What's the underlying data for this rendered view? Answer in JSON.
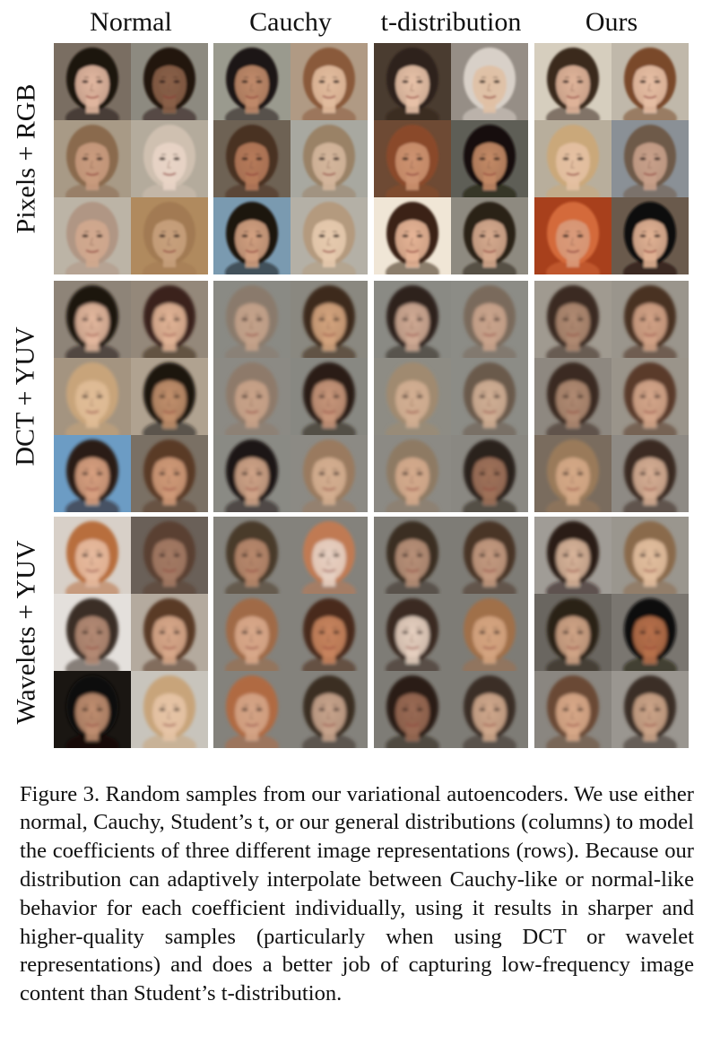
{
  "columns": [
    "Normal",
    "Cauchy",
    "t-distribution",
    "Ours"
  ],
  "rows": [
    "Pixels + RGB",
    "DCT + YUV",
    "Wavelets + YUV"
  ],
  "faces": [
    [
      [
        {
          "bg": "#7a6e62",
          "skin": "#e2b7a0",
          "hair": "#1c1410"
        },
        {
          "bg": "#8d8a80",
          "skin": "#8a6048",
          "hair": "#241810"
        },
        {
          "bg": "#a89a86",
          "skin": "#c99b7e",
          "hair": "#8a6a4e"
        },
        {
          "bg": "#b4ab9c",
          "skin": "#e8d4c6",
          "hair": "#cfc0b0"
        },
        {
          "bg": "#bcb4a6",
          "skin": "#d1a88e",
          "hair": "#b09684"
        },
        {
          "bg": "#b08a5e",
          "skin": "#c7a07c",
          "hair": "#a27a52"
        }
      ],
      [
        {
          "bg": "#9a9a8e",
          "skin": "#c08a6a",
          "hair": "#1e1612"
        },
        {
          "bg": "#b09a84",
          "skin": "#e2bc9e",
          "hair": "#8a5a3a"
        },
        {
          "bg": "#6e6254",
          "skin": "#b67a5a",
          "hair": "#4a3020"
        },
        {
          "bg": "#a8a8a0",
          "skin": "#d4b69c",
          "hair": "#9a8266"
        },
        {
          "bg": "#7a9ab0",
          "skin": "#d2a080",
          "hair": "#1a1210"
        },
        {
          "bg": "#b4b0a6",
          "skin": "#e6caae",
          "hair": "#b49a7e"
        }
      ],
      [
        {
          "bg": "#4a3c30",
          "skin": "#e8c2a8",
          "hair": "#2e221a"
        },
        {
          "bg": "#968e86",
          "skin": "#e0c0a4",
          "hair": "#d8d0c8"
        },
        {
          "bg": "#6e4a34",
          "skin": "#cc9270",
          "hair": "#8a4a2a"
        },
        {
          "bg": "#5e5e56",
          "skin": "#c48a66",
          "hair": "#140e0a"
        },
        {
          "bg": "#f0e6d6",
          "skin": "#e6b496",
          "hair": "#3a2416"
        },
        {
          "bg": "#8e8a80",
          "skin": "#d6aa8e",
          "hair": "#2c2018"
        }
      ],
      [
        {
          "bg": "#d6cebe",
          "skin": "#e0b49a",
          "hair": "#3a2a1e"
        },
        {
          "bg": "#c0b8aa",
          "skin": "#e6bea4",
          "hair": "#7a4a2c"
        },
        {
          "bg": "#b8ae9c",
          "skin": "#e4c0a2",
          "hair": "#caa87a"
        },
        {
          "bg": "#8a9096",
          "skin": "#c8a08a",
          "hair": "#6e5a48"
        },
        {
          "bg": "#a8401c",
          "skin": "#d89a7a",
          "hair": "#d46a3a"
        },
        {
          "bg": "#6a5a4c",
          "skin": "#e2b294",
          "hair": "#0e0a08"
        }
      ]
    ],
    [
      [
        {
          "bg": "#8e8478",
          "skin": "#e4b89e",
          "hair": "#1c1410"
        },
        {
          "bg": "#94887a",
          "skin": "#e2b496",
          "hair": "#3a241a"
        },
        {
          "bg": "#a49480",
          "skin": "#e0bc96",
          "hair": "#c8a47a"
        },
        {
          "bg": "#b0a290",
          "skin": "#c2906c",
          "hair": "#1a1210"
        },
        {
          "bg": "#6c9cc4",
          "skin": "#d8a080",
          "hair": "#2a1a12"
        },
        {
          "bg": "#7a7064",
          "skin": "#d09a78",
          "hair": "#5a3a26"
        }
      ],
      [
        {
          "bg": "#8a8a84",
          "skin": "#c4a28a",
          "hair": "#8a7a6c"
        },
        {
          "bg": "#8a8880",
          "skin": "#d4a47e",
          "hair": "#3e2a1a"
        },
        {
          "bg": "#8c8a84",
          "skin": "#c8a288",
          "hair": "#8e7a6a"
        },
        {
          "bg": "#888882",
          "skin": "#c8967a",
          "hair": "#2a1e16"
        },
        {
          "bg": "#8a8a84",
          "skin": "#d0a488",
          "hair": "#1e1612"
        },
        {
          "bg": "#8c8a84",
          "skin": "#d4ae90",
          "hair": "#9a7a5e"
        }
      ],
      [
        {
          "bg": "#8a8a84",
          "skin": "#d0aa94",
          "hair": "#2e241e"
        },
        {
          "bg": "#8c8c86",
          "skin": "#caa48c",
          "hair": "#7a6a5c"
        },
        {
          "bg": "#8e8c84",
          "skin": "#d2ae92",
          "hair": "#a08a70"
        },
        {
          "bg": "#8c8c86",
          "skin": "#d0ae94",
          "hair": "#6a5a4c"
        },
        {
          "bg": "#8c8a84",
          "skin": "#d4aa8c",
          "hair": "#8e7a64"
        },
        {
          "bg": "#8a8882",
          "skin": "#a0725a",
          "hair": "#2a201a"
        }
      ],
      [
        {
          "bg": "#a09a90",
          "skin": "#b08a72",
          "hair": "#3a2a20"
        },
        {
          "bg": "#9a958c",
          "skin": "#d2a286",
          "hair": "#4a3222"
        },
        {
          "bg": "#8e8880",
          "skin": "#b08a72",
          "hair": "#3a2a20"
        },
        {
          "bg": "#9a948a",
          "skin": "#d4a68a",
          "hair": "#5a3a2a"
        },
        {
          "bg": "#7a6c5e",
          "skin": "#d4a886",
          "hair": "#9a7a5a"
        },
        {
          "bg": "#8e8a84",
          "skin": "#d6ae94",
          "hair": "#3a2a20"
        }
      ]
    ],
    [
      [
        {
          "bg": "#d8d0c8",
          "skin": "#e6ba9e",
          "hair": "#b86e3e"
        },
        {
          "bg": "#6a6058",
          "skin": "#a47a64",
          "hair": "#5a4032"
        },
        {
          "bg": "#e4e0dc",
          "skin": "#b48a74",
          "hair": "#3a2e26"
        },
        {
          "bg": "#b4aa9e",
          "skin": "#d8a88a",
          "hair": "#5a3a26"
        },
        {
          "bg": "#1a1612",
          "skin": "#c08e70",
          "hair": "#0e0a08"
        },
        {
          "bg": "#c8c4bc",
          "skin": "#e6c4a6",
          "hair": "#c8a47a"
        }
      ],
      [
        {
          "bg": "#84827c",
          "skin": "#b8886c",
          "hair": "#4a3a2c"
        },
        {
          "bg": "#84827c",
          "skin": "#e6d0c2",
          "hair": "#c07a52"
        },
        {
          "bg": "#84827c",
          "skin": "#d8a88a",
          "hair": "#a06a46"
        },
        {
          "bg": "#84827c",
          "skin": "#c8845e",
          "hair": "#4a2a1a"
        },
        {
          "bg": "#84827c",
          "skin": "#d4a486",
          "hair": "#b06a42"
        },
        {
          "bg": "#84827c",
          "skin": "#c8a48c",
          "hair": "#3a2e24"
        }
      ],
      [
        {
          "bg": "#7e7c76",
          "skin": "#b89078",
          "hair": "#3a2e24"
        },
        {
          "bg": "#7e7c76",
          "skin": "#c49a80",
          "hair": "#4a3628"
        },
        {
          "bg": "#7e7c76",
          "skin": "#e6d0c0",
          "hair": "#3a2a20"
        },
        {
          "bg": "#7e7c76",
          "skin": "#d4a480",
          "hair": "#a0704a"
        },
        {
          "bg": "#7e7c76",
          "skin": "#9a6a54",
          "hair": "#2a1e16"
        },
        {
          "bg": "#7e7c76",
          "skin": "#d0a88c",
          "hair": "#3a2e26"
        }
      ],
      [
        {
          "bg": "#a09c96",
          "skin": "#d8b49a",
          "hair": "#2a1a12"
        },
        {
          "bg": "#9a968e",
          "skin": "#e2be9e",
          "hair": "#8a6a4c"
        },
        {
          "bg": "#6a6660",
          "skin": "#d0a486",
          "hair": "#2a2018"
        },
        {
          "bg": "#7a7670",
          "skin": "#b8704a",
          "hair": "#100c0a"
        },
        {
          "bg": "#8a8680",
          "skin": "#d8a888",
          "hair": "#6a4a34"
        },
        {
          "bg": "#9a9690",
          "skin": "#cca488",
          "hair": "#3a2e26"
        }
      ]
    ]
  ],
  "caption": {
    "label": "Figure 3.",
    "text": " Random samples from our variational autoencoders. We use either normal, Cauchy, Student’s t, or our general distributions (columns) to model the coefficients of three different image representations (rows). Because our distribution can adaptively interpolate between Cauchy-like or normal-like behavior for each coefficient individually, using it results in sharper and higher-quality samples (particularly when using DCT or wavelet representations) and does a better job of capturing low-frequency image content than Student’s t-distribution."
  }
}
